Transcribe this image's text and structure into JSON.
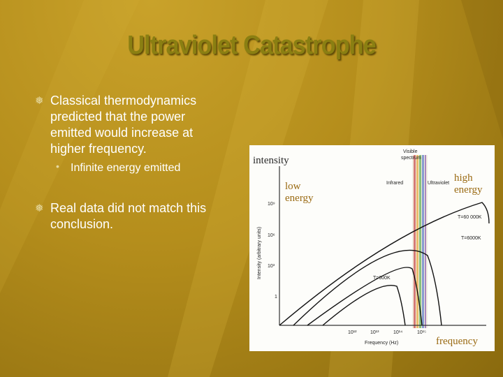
{
  "slide": {
    "title": "Ultraviolet Catastrophe",
    "bullets": [
      {
        "text": "Classical thermodynamics predicted that the power emitted would increase at higher frequency.",
        "sub": [
          "Infinite energy emitted"
        ]
      },
      {
        "text": "Real data did not match this conclusion."
      }
    ]
  },
  "figure": {
    "overlay_labels": {
      "intensity": "intensity",
      "low_energy": "low energy",
      "high_energy": "high energy",
      "frequency": "frequency"
    },
    "image_labels": {
      "visible": [
        "Visible",
        "spectrum"
      ],
      "infrared": "Infrared",
      "ultraviolet": "Ultraviolet",
      "y_ticks": [
        "10⁹",
        "10⁶",
        "10³",
        "1"
      ],
      "x_ticks": [
        "10¹²",
        "10¹³",
        "10¹⁴",
        "10¹⁵"
      ],
      "x_axis": "Frequency (Hz)",
      "y_axis": "Intensity (arbitrary units)",
      "curves": [
        "T=60 000K",
        "T=6000K",
        "T=600K"
      ]
    }
  }
}
